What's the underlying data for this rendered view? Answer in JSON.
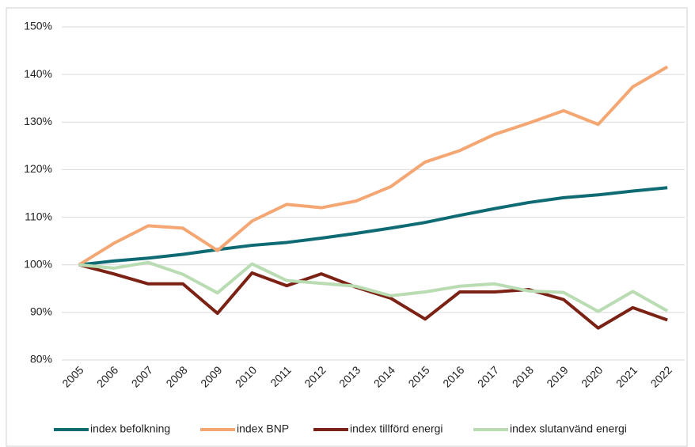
{
  "chart_data": {
    "type": "line",
    "categories": [
      "2005",
      "2006",
      "2007",
      "2008",
      "2009",
      "2010",
      "2011",
      "2012",
      "2013",
      "2014",
      "2015",
      "2016",
      "2017",
      "2018",
      "2019",
      "2020",
      "2021",
      "2022"
    ],
    "series": [
      {
        "name": "index befolkning",
        "color": "#0f6b73",
        "values": [
          100,
          100.8,
          101.4,
          102.2,
          103.2,
          104.1,
          104.7,
          105.6,
          106.6,
          107.7,
          108.9,
          110.4,
          111.8,
          113.1,
          114.1,
          114.7,
          115.5,
          116.2
        ]
      },
      {
        "name": "index BNP",
        "color": "#f4a673",
        "values": [
          100,
          104.5,
          108.2,
          107.7,
          103.0,
          109.2,
          112.7,
          112.0,
          113.4,
          116.4,
          121.6,
          124.0,
          127.4,
          129.8,
          132.4,
          129.5,
          137.4,
          141.6
        ]
      },
      {
        "name": "index tillförd energi",
        "color": "#7b2214",
        "values": [
          100,
          98.1,
          96.0,
          96.0,
          89.8,
          98.3,
          95.6,
          98.1,
          95.3,
          93.0,
          88.6,
          94.3,
          94.3,
          94.8,
          92.7,
          86.7,
          91.0,
          88.4
        ]
      },
      {
        "name": "index slutanvänd energi",
        "color": "#b9dcb3",
        "values": [
          100,
          99.3,
          100.5,
          98.0,
          94.1,
          100.2,
          96.7,
          96.1,
          95.5,
          93.5,
          94.3,
          95.5,
          96.0,
          94.5,
          94.2,
          90.2,
          94.4,
          90.3
        ]
      }
    ],
    "ylim": [
      80,
      150
    ],
    "yticks": [
      {
        "value": 80,
        "label": "80%"
      },
      {
        "value": 90,
        "label": "90%"
      },
      {
        "value": 100,
        "label": "100%"
      },
      {
        "value": 110,
        "label": "110%"
      },
      {
        "value": 120,
        "label": "120%"
      },
      {
        "value": 130,
        "label": "130%"
      },
      {
        "value": 140,
        "label": "140%"
      },
      {
        "value": 150,
        "label": "150%"
      }
    ],
    "grid": true,
    "legend": "bottom"
  }
}
